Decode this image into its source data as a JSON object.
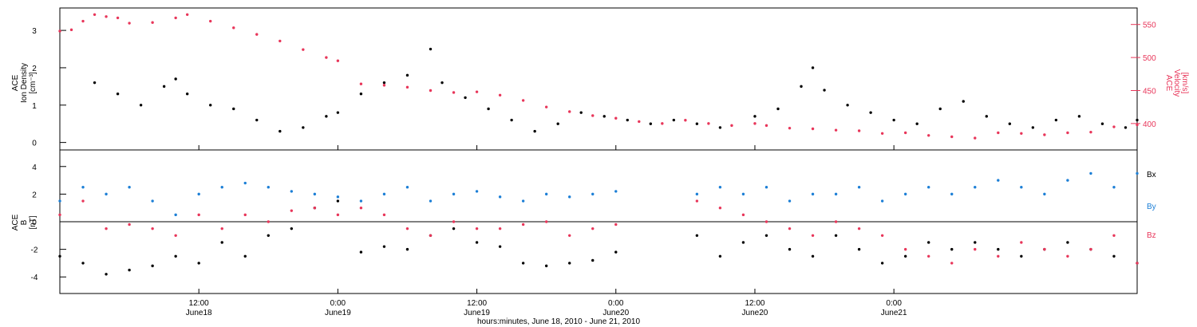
{
  "chart_data": [
    {
      "type": "scatter",
      "title": "",
      "ylabel": [
        "ACE",
        "Ion Density",
        "[cm⁻³]"
      ],
      "ylabel_right": [
        "ACE",
        "Velocity",
        "[km/s]"
      ],
      "ylim": [
        -0.2,
        3.6
      ],
      "yticks": [
        0,
        1,
        2,
        3
      ],
      "ylim_right": [
        360,
        575
      ],
      "yticks_right": [
        400,
        450,
        500,
        550
      ],
      "series": [
        {
          "color": "#000000",
          "axis": "left",
          "gap_after": [
            2
          ],
          "points": [
            [
              3,
              1.6
            ],
            [
              5,
              1.3
            ],
            [
              7,
              1.0
            ],
            [
              9,
              1.5
            ],
            [
              10,
              1.7
            ],
            [
              11,
              1.3
            ],
            [
              13,
              1.0
            ],
            [
              15,
              0.9
            ],
            [
              17,
              0.6
            ],
            [
              19,
              0.3
            ],
            [
              21,
              0.4
            ],
            [
              23,
              0.7
            ],
            [
              24,
              0.8
            ],
            [
              26,
              1.3
            ],
            [
              28,
              1.6
            ],
            [
              30,
              1.8
            ],
            [
              32,
              2.5
            ],
            [
              33,
              1.6
            ],
            [
              35,
              1.2
            ],
            [
              37,
              0.9
            ],
            [
              39,
              0.6
            ],
            [
              41,
              0.3
            ],
            [
              43,
              0.5
            ],
            [
              45,
              0.8
            ],
            [
              47,
              0.7
            ],
            [
              49,
              0.6
            ],
            [
              51,
              0.5
            ],
            [
              53,
              0.6
            ],
            [
              55,
              0.5
            ],
            [
              57,
              0.4
            ],
            [
              60,
              0.7
            ],
            [
              62,
              0.9
            ],
            [
              64,
              1.5
            ],
            [
              65,
              2.0
            ],
            [
              66,
              1.4
            ],
            [
              68,
              1.0
            ],
            [
              70,
              0.8
            ],
            [
              72,
              0.6
            ],
            [
              74,
              0.5
            ],
            [
              76,
              0.9
            ],
            [
              78,
              1.1
            ],
            [
              80,
              0.7
            ],
            [
              82,
              0.5
            ],
            [
              84,
              0.4
            ],
            [
              86,
              0.6
            ],
            [
              88,
              0.7
            ],
            [
              90,
              0.5
            ],
            [
              92,
              0.4
            ],
            [
              93,
              0.6
            ]
          ]
        },
        {
          "color": "#e8365a",
          "axis": "right",
          "gap_after": [
            2
          ],
          "points": [
            [
              0,
              540
            ],
            [
              1,
              542
            ],
            [
              2,
              555
            ],
            [
              3,
              565
            ],
            [
              4,
              562
            ],
            [
              5,
              560
            ],
            [
              6,
              552
            ],
            [
              8,
              553
            ],
            [
              10,
              560
            ],
            [
              11,
              565
            ],
            [
              13,
              555
            ],
            [
              15,
              545
            ],
            [
              17,
              535
            ],
            [
              19,
              525
            ],
            [
              21,
              512
            ],
            [
              23,
              500
            ],
            [
              24,
              495
            ],
            [
              26,
              460
            ],
            [
              28,
              458
            ],
            [
              30,
              455
            ],
            [
              32,
              450
            ],
            [
              34,
              447
            ],
            [
              36,
              448
            ],
            [
              38,
              443
            ],
            [
              40,
              435
            ],
            [
              42,
              425
            ],
            [
              44,
              418
            ],
            [
              46,
              412
            ],
            [
              48,
              408
            ],
            [
              50,
              403
            ],
            [
              52,
              400
            ],
            [
              54,
              405
            ],
            [
              56,
              400
            ],
            [
              58,
              397
            ],
            [
              60,
              400
            ],
            [
              61,
              397
            ],
            [
              63,
              393
            ],
            [
              65,
              392
            ],
            [
              67,
              390
            ],
            [
              69,
              389
            ],
            [
              71,
              385
            ],
            [
              73,
              386
            ],
            [
              75,
              382
            ],
            [
              77,
              380
            ],
            [
              79,
              378
            ],
            [
              81,
              386
            ],
            [
              83,
              385
            ],
            [
              85,
              383
            ],
            [
              87,
              386
            ],
            [
              89,
              387
            ],
            [
              91,
              395
            ],
            [
              93,
              398
            ]
          ]
        }
      ]
    },
    {
      "type": "scatter",
      "title": "",
      "ylabel": [
        "ACE",
        "B",
        "[nT]"
      ],
      "ylim": [
        -5.2,
        5.2
      ],
      "yticks": [
        -4,
        -2,
        0,
        2,
        4
      ],
      "zero_line": true,
      "xlabel": "hours:minutes, June 18, 2010 - June 21, 2010",
      "xlim": [
        0,
        93
      ],
      "xticks": [
        {
          "x": 12,
          "label": "12:00",
          "sublabel": "June18"
        },
        {
          "x": 24,
          "label": "0:00",
          "sublabel": "June19"
        },
        {
          "x": 36,
          "label": "12:00",
          "sublabel": "June19"
        },
        {
          "x": 48,
          "label": "0:00",
          "sublabel": "June20"
        },
        {
          "x": 60,
          "label": "12:00",
          "sublabel": "June20"
        },
        {
          "x": 72,
          "label": "0:00",
          "sublabel": "June21"
        }
      ],
      "series": [
        {
          "name": "Bx",
          "color": "#000000",
          "gap_after": [
            2
          ],
          "points": [
            [
              0,
              -2.5
            ],
            [
              2,
              -3.0
            ],
            [
              4,
              -3.8
            ],
            [
              6,
              -3.5
            ],
            [
              8,
              -3.2
            ],
            [
              10,
              -2.5
            ],
            [
              12,
              -3.0
            ],
            [
              14,
              -1.5
            ],
            [
              16,
              -2.5
            ],
            [
              18,
              -1.0
            ],
            [
              20,
              -0.5
            ],
            [
              22,
              1.0
            ],
            [
              24,
              1.5
            ],
            [
              26,
              -2.2
            ],
            [
              28,
              -1.8
            ],
            [
              30,
              -2.0
            ],
            [
              32,
              -1.0
            ],
            [
              34,
              -0.5
            ],
            [
              36,
              -1.5
            ],
            [
              38,
              -1.8
            ],
            [
              40,
              -3.0
            ],
            [
              42,
              -3.2
            ],
            [
              44,
              -3.0
            ],
            [
              46,
              -2.8
            ],
            [
              48,
              -2.2
            ],
            [
              55,
              -1.0
            ],
            [
              57,
              -2.5
            ],
            [
              59,
              -1.5
            ],
            [
              61,
              -1.0
            ],
            [
              63,
              -2.0
            ],
            [
              65,
              -2.5
            ],
            [
              67,
              -1.0
            ],
            [
              69,
              -2.0
            ],
            [
              71,
              -3.0
            ],
            [
              73,
              -2.5
            ],
            [
              75,
              -1.5
            ],
            [
              77,
              -2.0
            ],
            [
              79,
              -1.5
            ],
            [
              81,
              -2.0
            ],
            [
              83,
              -2.5
            ],
            [
              85,
              -2.0
            ],
            [
              87,
              -1.5
            ],
            [
              89,
              -2.0
            ],
            [
              91,
              -2.5
            ],
            [
              93,
              -3.0
            ]
          ]
        },
        {
          "name": "By",
          "color": "#1c7fd6",
          "gap_after": [
            2
          ],
          "points": [
            [
              0,
              1.5
            ],
            [
              2,
              2.5
            ],
            [
              4,
              2.0
            ],
            [
              6,
              2.5
            ],
            [
              8,
              1.5
            ],
            [
              10,
              0.5
            ],
            [
              12,
              2.0
            ],
            [
              14,
              2.5
            ],
            [
              16,
              2.8
            ],
            [
              18,
              2.5
            ],
            [
              20,
              2.2
            ],
            [
              22,
              2.0
            ],
            [
              24,
              1.8
            ],
            [
              26,
              1.5
            ],
            [
              28,
              2.0
            ],
            [
              30,
              2.5
            ],
            [
              32,
              1.5
            ],
            [
              34,
              2.0
            ],
            [
              36,
              2.2
            ],
            [
              38,
              1.8
            ],
            [
              40,
              1.5
            ],
            [
              42,
              2.0
            ],
            [
              44,
              1.8
            ],
            [
              46,
              2.0
            ],
            [
              48,
              2.2
            ],
            [
              55,
              2.0
            ],
            [
              57,
              2.5
            ],
            [
              59,
              2.0
            ],
            [
              61,
              2.5
            ],
            [
              63,
              1.5
            ],
            [
              65,
              2.0
            ],
            [
              67,
              2.0
            ],
            [
              69,
              2.5
            ],
            [
              71,
              1.5
            ],
            [
              73,
              2.0
            ],
            [
              75,
              2.5
            ],
            [
              77,
              2.0
            ],
            [
              79,
              2.5
            ],
            [
              81,
              3.0
            ],
            [
              83,
              2.5
            ],
            [
              85,
              2.0
            ],
            [
              87,
              3.0
            ],
            [
              89,
              3.5
            ],
            [
              91,
              2.5
            ],
            [
              93,
              3.5
            ]
          ]
        },
        {
          "name": "Bz",
          "color": "#e8365a",
          "gap_after": [
            2
          ],
          "points": [
            [
              0,
              0.5
            ],
            [
              2,
              1.5
            ],
            [
              4,
              -0.5
            ],
            [
              6,
              -0.2
            ],
            [
              8,
              -0.5
            ],
            [
              10,
              -1.0
            ],
            [
              12,
              0.5
            ],
            [
              14,
              -0.5
            ],
            [
              16,
              0.5
            ],
            [
              18,
              0.0
            ],
            [
              20,
              0.8
            ],
            [
              22,
              1.0
            ],
            [
              24,
              0.5
            ],
            [
              26,
              1.0
            ],
            [
              28,
              0.5
            ],
            [
              30,
              -0.5
            ],
            [
              32,
              -1.0
            ],
            [
              34,
              0.0
            ],
            [
              36,
              -0.5
            ],
            [
              38,
              -0.5
            ],
            [
              40,
              -0.2
            ],
            [
              42,
              0.0
            ],
            [
              44,
              -1.0
            ],
            [
              46,
              -0.5
            ],
            [
              48,
              -0.2
            ],
            [
              55,
              1.5
            ],
            [
              57,
              1.0
            ],
            [
              59,
              0.5
            ],
            [
              61,
              0.0
            ],
            [
              63,
              -0.5
            ],
            [
              65,
              -1.0
            ],
            [
              67,
              0.0
            ],
            [
              69,
              -0.5
            ],
            [
              71,
              -1.0
            ],
            [
              73,
              -2.0
            ],
            [
              75,
              -2.5
            ],
            [
              77,
              -3.0
            ],
            [
              79,
              -2.0
            ],
            [
              81,
              -2.5
            ],
            [
              83,
              -1.5
            ],
            [
              85,
              -2.0
            ],
            [
              87,
              -2.5
            ],
            [
              89,
              -2.0
            ],
            [
              91,
              -1.0
            ],
            [
              93,
              -3.0
            ]
          ]
        }
      ]
    }
  ]
}
